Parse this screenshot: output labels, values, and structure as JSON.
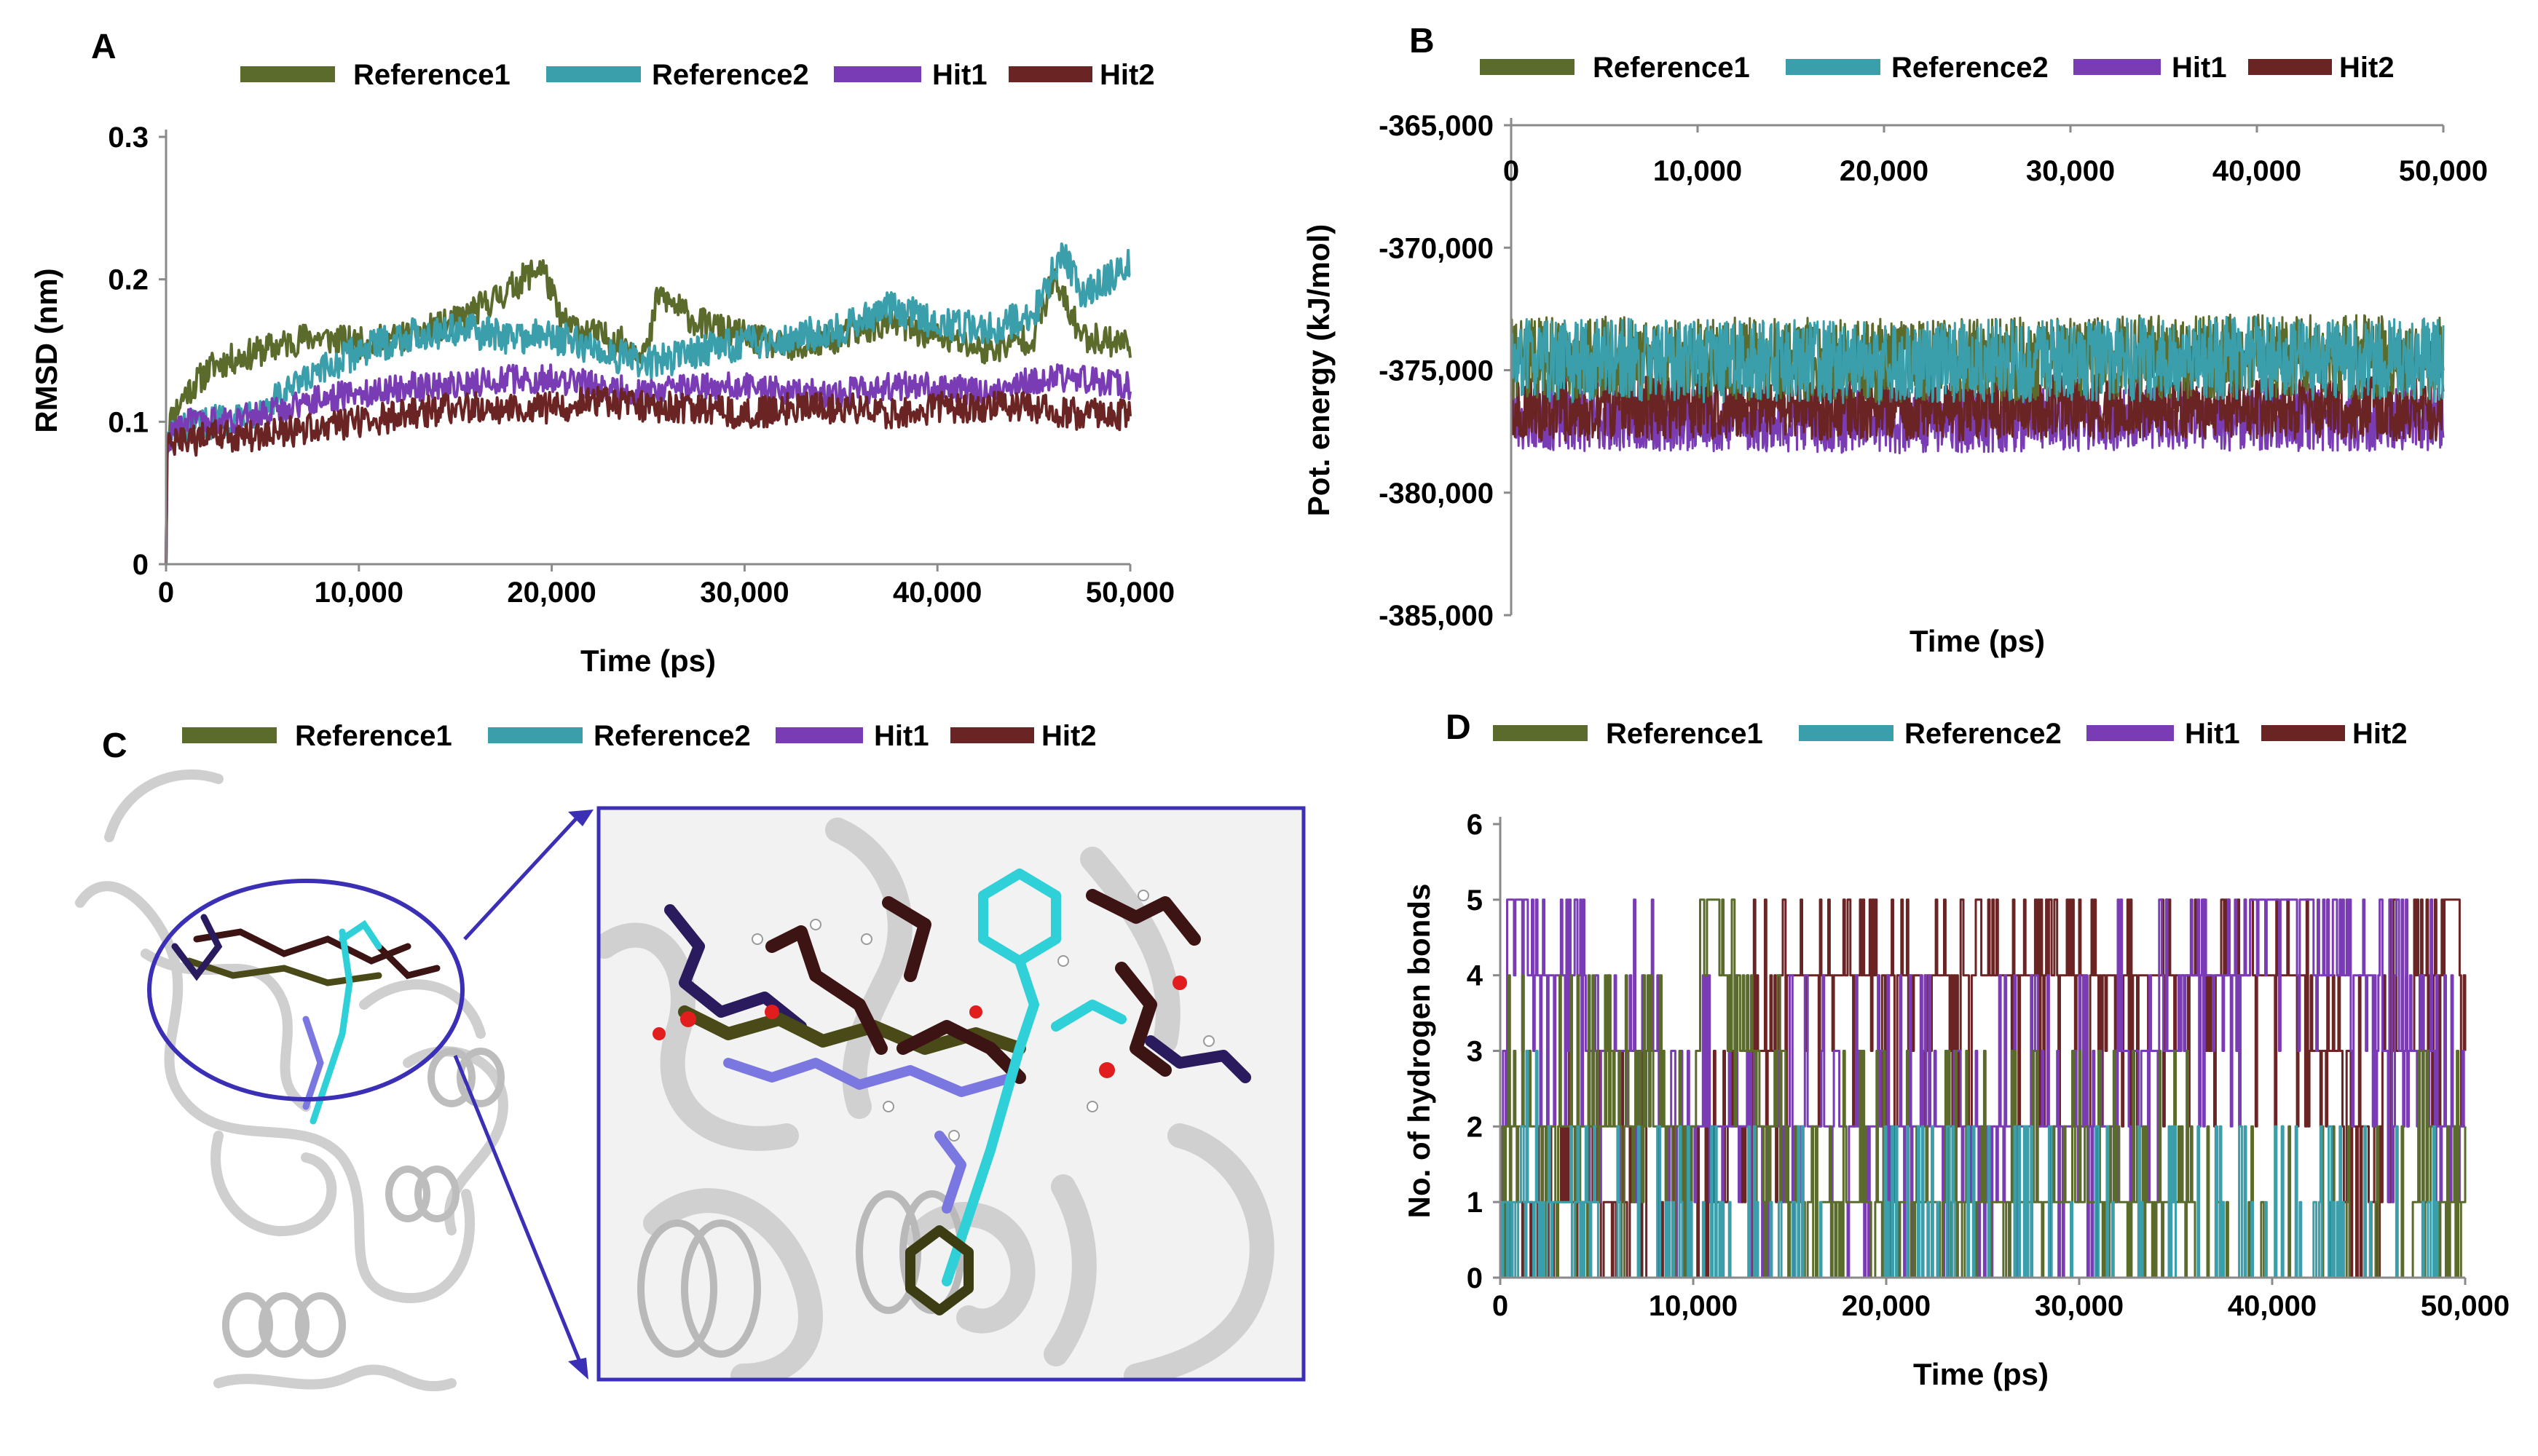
{
  "colors": {
    "reference1": "#5a6b2c",
    "reference2": "#3a9eab",
    "hit1": "#7a3cb4",
    "hit2": "#6b2424",
    "circle": "#3a2fb5",
    "ribbon": "#d9d9d9"
  },
  "legend": [
    "Reference1",
    "Reference2",
    "Hit1",
    "Hit2"
  ],
  "chart_data": [
    {
      "panel": "A",
      "type": "line",
      "title": "",
      "xlabel": "Time (ps)",
      "ylabel": "RMSD (nm)",
      "xlim": [
        0,
        50000
      ],
      "ylim": [
        0,
        0.3
      ],
      "xticks": [
        "0",
        "10,000",
        "20,000",
        "30,000",
        "40,000",
        "50,000"
      ],
      "yticks": [
        "0",
        "0.1",
        "0.2",
        "0.3"
      ],
      "series": [
        {
          "name": "Reference1",
          "x": [
            0,
            200,
            1000,
            2500,
            5000,
            7500,
            10000,
            12500,
            15000,
            17500,
            19500,
            20500,
            22500,
            25000,
            25500,
            27500,
            30000,
            32500,
            35000,
            37500,
            40000,
            42500,
            45000,
            46000,
            47500,
            50000
          ],
          "values": [
            0.08,
            0.1,
            0.12,
            0.14,
            0.15,
            0.16,
            0.155,
            0.16,
            0.17,
            0.19,
            0.21,
            0.17,
            0.16,
            0.15,
            0.19,
            0.17,
            0.16,
            0.15,
            0.16,
            0.17,
            0.16,
            0.15,
            0.16,
            0.2,
            0.16,
            0.155
          ]
        },
        {
          "name": "Reference2",
          "x": [
            0,
            200,
            1000,
            2500,
            5000,
            7500,
            10000,
            12500,
            15000,
            17500,
            20000,
            22500,
            25000,
            27500,
            30000,
            32500,
            35000,
            37500,
            40000,
            42500,
            45000,
            46500,
            47500,
            50000
          ],
          "values": [
            0.08,
            0.09,
            0.095,
            0.1,
            0.11,
            0.13,
            0.15,
            0.16,
            0.165,
            0.16,
            0.16,
            0.15,
            0.14,
            0.15,
            0.155,
            0.16,
            0.165,
            0.18,
            0.17,
            0.165,
            0.175,
            0.22,
            0.19,
            0.21
          ]
        },
        {
          "name": "Hit1",
          "x": [
            0,
            200,
            1000,
            2500,
            5000,
            7500,
            10000,
            12500,
            15000,
            17500,
            20000,
            22500,
            25000,
            27500,
            30000,
            32500,
            35000,
            37500,
            40000,
            42500,
            45000,
            47500,
            50000
          ],
          "values": [
            0.08,
            0.09,
            0.1,
            0.1,
            0.105,
            0.115,
            0.12,
            0.125,
            0.125,
            0.13,
            0.13,
            0.125,
            0.12,
            0.125,
            0.125,
            0.12,
            0.12,
            0.125,
            0.125,
            0.12,
            0.13,
            0.13,
            0.125
          ]
        },
        {
          "name": "Hit2",
          "x": [
            0,
            200,
            1000,
            2500,
            5000,
            7500,
            10000,
            12500,
            15000,
            17500,
            20000,
            22500,
            25000,
            27500,
            30000,
            32500,
            35000,
            37500,
            40000,
            42500,
            45000,
            47500,
            50000
          ],
          "values": [
            0.08,
            0.085,
            0.085,
            0.09,
            0.09,
            0.095,
            0.1,
            0.105,
            0.11,
            0.11,
            0.11,
            0.115,
            0.11,
            0.11,
            0.105,
            0.11,
            0.11,
            0.105,
            0.11,
            0.11,
            0.11,
            0.105,
            0.105
          ]
        }
      ]
    },
    {
      "panel": "B",
      "type": "line",
      "title": "",
      "xlabel": "Time (ps)",
      "ylabel": "Pot. energy (kJ/mol)",
      "xlim": [
        0,
        50000
      ],
      "ylim": [
        -385000,
        -365000
      ],
      "xticks": [
        "0",
        "10,000",
        "20,000",
        "30,000",
        "40,000",
        "50,000"
      ],
      "yticks": [
        "-365,000",
        "-370,000",
        "-375,000",
        "-380,000",
        "-385,000"
      ],
      "x_axis_position": "top",
      "series": [
        {
          "name": "Reference1",
          "x": [
            0,
            10000,
            20000,
            30000,
            40000,
            50000
          ],
          "values": [
            -374500,
            -374500,
            -374600,
            -374500,
            -374400,
            -374500
          ]
        },
        {
          "name": "Reference2",
          "x": [
            0,
            10000,
            20000,
            30000,
            40000,
            50000
          ],
          "values": [
            -374600,
            -374600,
            -374700,
            -374600,
            -374500,
            -374600
          ]
        },
        {
          "name": "Hit1",
          "x": [
            0,
            10000,
            20000,
            30000,
            40000,
            50000
          ],
          "values": [
            -377000,
            -377000,
            -377100,
            -377000,
            -377000,
            -377000
          ]
        },
        {
          "name": "Hit2",
          "x": [
            0,
            10000,
            20000,
            30000,
            40000,
            50000
          ],
          "values": [
            -376600,
            -376500,
            -376600,
            -376500,
            -376500,
            -376600
          ]
        }
      ]
    },
    {
      "panel": "D",
      "type": "line",
      "title": "",
      "xlabel": "Time (ps)",
      "ylabel": "No. of hydrogen bonds",
      "xlim": [
        0,
        50000
      ],
      "ylim": [
        0,
        6
      ],
      "xticks": [
        "0",
        "10,000",
        "20,000",
        "30,000",
        "40,000",
        "50,000"
      ],
      "yticks": [
        "0",
        "1",
        "2",
        "3",
        "4",
        "5",
        "6"
      ],
      "series": [
        {
          "name": "Reference1",
          "x": [
            0,
            5000,
            10000,
            10800,
            15000,
            20000,
            25000,
            30000,
            35000,
            37000,
            44500,
            50000
          ],
          "values": [
            2,
            2,
            2,
            5,
            1,
            1,
            1,
            1,
            1,
            0,
            0,
            1
          ]
        },
        {
          "name": "Reference2",
          "x": [
            0,
            10000,
            20000,
            30000,
            40000,
            50000
          ],
          "values": [
            1,
            0,
            0,
            0,
            0,
            0
          ]
        },
        {
          "name": "Hit1",
          "x": [
            0,
            500,
            2500,
            10000,
            20000,
            30000,
            40500,
            50000
          ],
          "values": [
            2,
            5,
            4,
            2,
            2,
            2,
            5,
            2
          ]
        },
        {
          "name": "Hit2",
          "x": [
            0,
            5000,
            10000,
            15000,
            20000,
            27000,
            33000,
            35000,
            41000,
            45000,
            49700,
            50000
          ],
          "values": [
            0,
            1,
            0,
            4,
            4,
            4,
            4,
            4,
            4,
            2,
            5,
            3
          ]
        }
      ]
    }
  ],
  "panels": {
    "A": {
      "label": "A"
    },
    "B": {
      "label": "B"
    },
    "C": {
      "label": "C"
    },
    "D": {
      "label": "D"
    }
  }
}
